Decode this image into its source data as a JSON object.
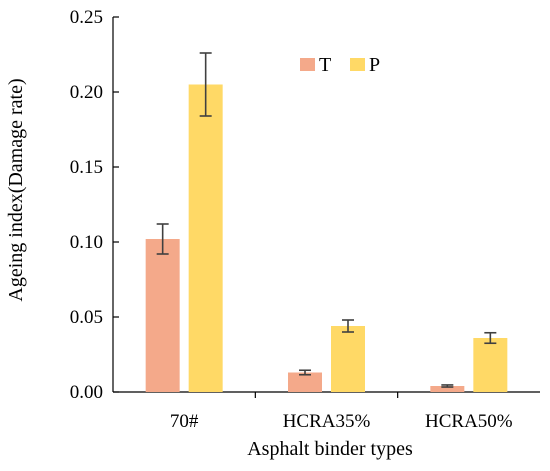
{
  "chart_data": {
    "type": "bar",
    "title": "",
    "xlabel": "Asphalt binder types",
    "ylabel": "Ageing index(Damage rate)",
    "categories": [
      "70#",
      "HCRA35%",
      "HCRA50%"
    ],
    "series": [
      {
        "name": "T",
        "values": [
          0.102,
          0.013,
          0.004
        ],
        "errors": [
          0.01,
          0.0015,
          0.0007
        ],
        "color": "#F4A98A"
      },
      {
        "name": "P",
        "values": [
          0.205,
          0.044,
          0.036
        ],
        "errors": [
          0.021,
          0.004,
          0.0035
        ],
        "color": "#FFD966"
      }
    ],
    "ylim": [
      0.0,
      0.25
    ],
    "yticks": [
      "0.00",
      "0.05",
      "0.10",
      "0.15",
      "0.20",
      "0.25"
    ],
    "grid": false,
    "legend_position": "top-center"
  }
}
